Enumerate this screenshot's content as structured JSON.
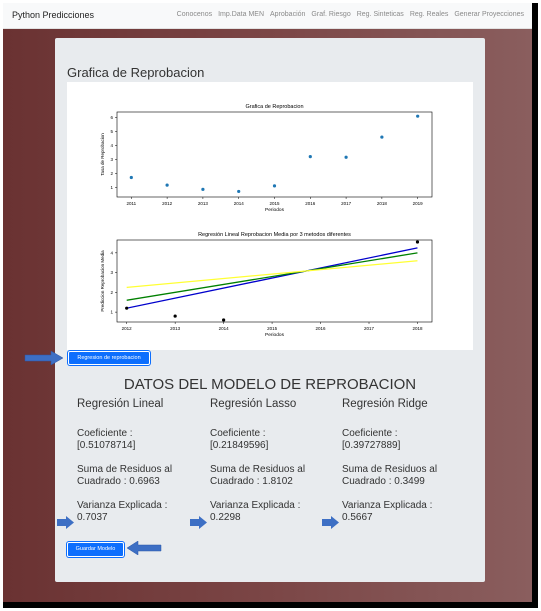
{
  "navbar": {
    "brand": "Python Predicciones",
    "links": [
      "Conocenos",
      "Imp.Data MEN",
      "Aprobación",
      "Graf. Riesgo",
      "Reg. Sinteticas",
      "Reg. Reales",
      "Generar Proyecciones"
    ]
  },
  "card": {
    "title": "Grafica de Reprobacion"
  },
  "chart_data": [
    {
      "type": "scatter",
      "title": "Grafica de Reprobacion",
      "xlabel": "Periodos",
      "ylabel": "Tasa de Reprobacion",
      "x": [
        2011,
        2012,
        2013,
        2014,
        2015,
        2016,
        2017,
        2018,
        2019
      ],
      "y": [
        1.7,
        1.15,
        0.85,
        0.7,
        1.1,
        3.2,
        3.15,
        4.6,
        6.1
      ],
      "xlim": [
        2010.6,
        2019.4
      ],
      "ylim": [
        0.3,
        6.4
      ],
      "yticks": [
        1,
        2,
        3,
        4,
        5,
        6
      ],
      "xticks": [
        2011,
        2012,
        2013,
        2014,
        2015,
        2016,
        2017,
        2018,
        2019
      ],
      "color": "#1f77b4"
    },
    {
      "type": "line",
      "title": "Regresión Lineal Reprobacion Media por 3 metodos diferentes",
      "xlabel": "Periodos",
      "ylabel": "Prediccion Reprobacion Media",
      "xlim": [
        2011.8,
        2018.3
      ],
      "ylim": [
        0.5,
        4.65
      ],
      "yticks": [
        1,
        2,
        3,
        4
      ],
      "xticks": [
        2012,
        2013,
        2014,
        2015,
        2016,
        2017,
        2018
      ],
      "points": {
        "x": [
          2012,
          2013,
          2014,
          2018
        ],
        "y": [
          1.2,
          0.8,
          0.6,
          4.55
        ],
        "color": "#000000"
      },
      "series": [
        {
          "x": [
            2012,
            2018
          ],
          "y": [
            1.2,
            4.25
          ],
          "color": "#0000cc"
        },
        {
          "x": [
            2012,
            2018
          ],
          "y": [
            1.6,
            4.0
          ],
          "color": "#008000"
        },
        {
          "x": [
            2012,
            2018
          ],
          "y": [
            2.25,
            3.6
          ],
          "color": "#ffff33"
        }
      ]
    }
  ],
  "buttons": {
    "regresion": "Regresion de reprobacion",
    "guardar": "Guardar Modelo"
  },
  "datos": {
    "title": "DATOS DEL MODELO DE REPROBACION",
    "models": [
      {
        "name": "Regresión Lineal",
        "coef_label": "Coeficiente :",
        "coef_value": "[0.51078714]",
        "suma_label": "Suma de Residuos al",
        "suma_value": "Cuadrado : 0.6963",
        "var_label": "Varianza Explicada :",
        "var_value": "0.7037"
      },
      {
        "name": "Regresión Lasso",
        "coef_label": "Coeficiente :",
        "coef_value": "[0.21849596]",
        "suma_label": "Suma de Residuos al",
        "suma_value": "Cuadrado : 1.8102",
        "var_label": "Varianza Explicada :",
        "var_value": "0.2298"
      },
      {
        "name": "Regresión Ridge",
        "coef_label": "Coeficiente :",
        "coef_value": "[0.39727889]",
        "suma_label": "Suma de Residuos al",
        "suma_value": "Cuadrado : 0.3499",
        "var_label": "Varianza Explicada :",
        "var_value": "0.5667"
      }
    ]
  },
  "colors": {
    "arrow": "#3d6fc4",
    "button": "#0d6efd"
  }
}
